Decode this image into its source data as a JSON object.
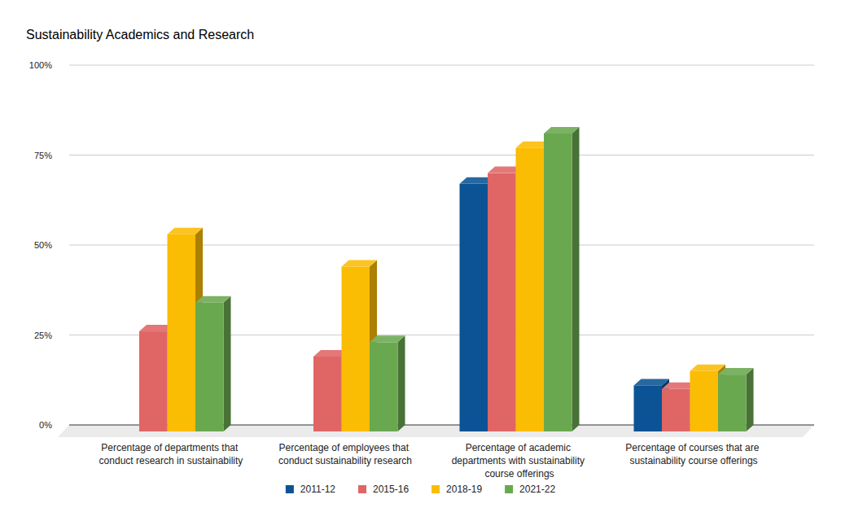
{
  "chart_data": {
    "type": "bar",
    "title": "Sustainability Academics and Research",
    "categories": [
      "Percentage of departments that conduct research in sustainability",
      "Percentage of employees that conduct sustainability research",
      "Percentage of academic departments with sustainability course offerings",
      "Percentage of courses that are sustainability course offerings"
    ],
    "series": [
      {
        "name": "2011-12",
        "color": "#0b5394",
        "values": [
          null,
          null,
          67,
          11
        ]
      },
      {
        "name": "2015-16",
        "color": "#e06666",
        "values": [
          26,
          19,
          70,
          10
        ]
      },
      {
        "name": "2018-19",
        "color": "#fbbc04",
        "values": [
          53,
          44,
          77,
          15
        ]
      },
      {
        "name": "2021-22",
        "color": "#6aa84f",
        "values": [
          34,
          23,
          81,
          14
        ]
      }
    ],
    "ylim": [
      0,
      100
    ],
    "yticks": [
      {
        "value": 0,
        "label": "0%"
      },
      {
        "value": 25,
        "label": "25%"
      },
      {
        "value": 50,
        "label": "50%"
      },
      {
        "value": 75,
        "label": "75%"
      },
      {
        "value": 100,
        "label": "100%"
      }
    ],
    "grid": true,
    "legend": "bottom"
  }
}
